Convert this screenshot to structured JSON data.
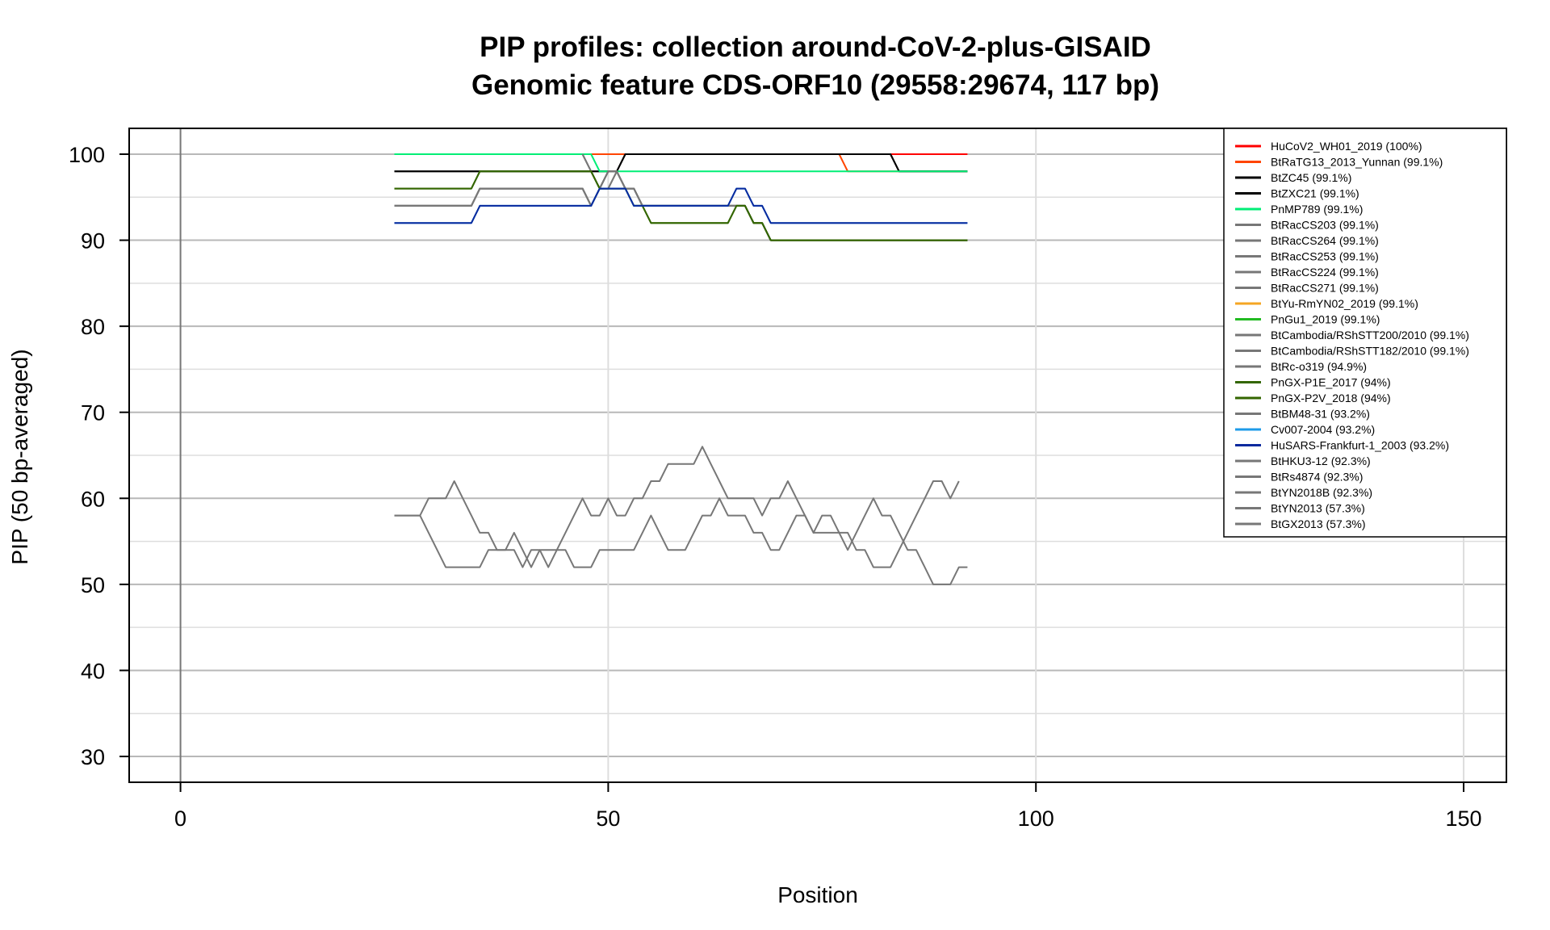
{
  "chart_data": {
    "type": "line",
    "title": "PIP profiles: collection around-CoV-2-plus-GISAID",
    "subtitle": "Genomic feature CDS-ORF10 (29558:29674, 117 bp)",
    "xlabel": "Position",
    "ylabel": "PIP (50 bp-averaged)",
    "xlim": [
      -6,
      155
    ],
    "ylim": [
      27,
      103
    ],
    "xticks": [
      0,
      50,
      100,
      150
    ],
    "yticks": [
      30,
      40,
      50,
      60,
      70,
      80,
      90,
      100
    ],
    "grid": true,
    "legend_position": "top-right",
    "series": [
      {
        "name": "HuCoV2_WH01_2019 (100%)",
        "color": "#ff0000",
        "points": [
          [
            25,
            100
          ],
          [
            92,
            100
          ]
        ]
      },
      {
        "name": "BtRaTG13_2013_Yunnan (99.1%)",
        "color": "#ff4500",
        "points": [
          [
            25,
            100
          ],
          [
            77,
            100
          ],
          [
            78,
            98
          ],
          [
            92,
            98
          ]
        ]
      },
      {
        "name": "BtZC45 (99.1%)",
        "color": "#000000",
        "points": [
          [
            25,
            98
          ],
          [
            51,
            98
          ],
          [
            52,
            100
          ],
          [
            83,
            100
          ],
          [
            84,
            98
          ],
          [
            92,
            98
          ]
        ]
      },
      {
        "name": "BtZXC21 (99.1%)",
        "color": "#000000",
        "points": [
          [
            25,
            98
          ],
          [
            51,
            98
          ],
          [
            52,
            100
          ],
          [
            83,
            100
          ],
          [
            84,
            98
          ],
          [
            92,
            98
          ]
        ]
      },
      {
        "name": "PnMP789 (99.1%)",
        "color": "#00ee76",
        "points": [
          [
            25,
            100
          ],
          [
            48,
            100
          ],
          [
            49,
            98
          ],
          [
            92,
            98
          ]
        ]
      },
      {
        "name": "BtRacCS203 (99.1%)",
        "color": "#777777",
        "points": [
          [
            25,
            94
          ],
          [
            34,
            94
          ],
          [
            35,
            96
          ],
          [
            47,
            96
          ],
          [
            48,
            94
          ],
          [
            49,
            96
          ],
          [
            50,
            98
          ],
          [
            51,
            98
          ],
          [
            52,
            96
          ],
          [
            53,
            96
          ],
          [
            54,
            94
          ],
          [
            64,
            94
          ],
          [
            65,
            94
          ],
          [
            66,
            94
          ],
          [
            67,
            92
          ],
          [
            68,
            92
          ],
          [
            69,
            90
          ],
          [
            92,
            90
          ]
        ]
      },
      {
        "name": "BtRacCS264 (99.1%)",
        "color": "#777777",
        "points": [
          [
            25,
            94
          ],
          [
            34,
            94
          ],
          [
            35,
            96
          ],
          [
            47,
            96
          ],
          [
            48,
            94
          ],
          [
            49,
            96
          ],
          [
            50,
            98
          ],
          [
            51,
            98
          ],
          [
            52,
            96
          ],
          [
            53,
            96
          ],
          [
            54,
            94
          ],
          [
            64,
            94
          ],
          [
            65,
            94
          ],
          [
            66,
            94
          ],
          [
            67,
            92
          ],
          [
            68,
            92
          ],
          [
            69,
            90
          ],
          [
            92,
            90
          ]
        ]
      },
      {
        "name": "BtRacCS253 (99.1%)",
        "color": "#777777",
        "points": [
          [
            25,
            94
          ],
          [
            34,
            94
          ],
          [
            35,
            96
          ],
          [
            47,
            96
          ],
          [
            48,
            94
          ],
          [
            49,
            96
          ],
          [
            50,
            98
          ],
          [
            51,
            98
          ],
          [
            52,
            96
          ],
          [
            53,
            96
          ],
          [
            54,
            94
          ],
          [
            64,
            94
          ],
          [
            65,
            94
          ],
          [
            66,
            94
          ],
          [
            67,
            92
          ],
          [
            68,
            92
          ],
          [
            69,
            90
          ],
          [
            92,
            90
          ]
        ]
      },
      {
        "name": "BtRacCS224 (99.1%)",
        "color": "#777777",
        "points": [
          [
            25,
            94
          ],
          [
            34,
            94
          ],
          [
            35,
            96
          ],
          [
            47,
            96
          ],
          [
            48,
            94
          ],
          [
            49,
            96
          ],
          [
            50,
            98
          ],
          [
            51,
            98
          ],
          [
            52,
            96
          ],
          [
            53,
            96
          ],
          [
            54,
            94
          ],
          [
            64,
            94
          ],
          [
            65,
            94
          ],
          [
            66,
            94
          ],
          [
            67,
            92
          ],
          [
            68,
            92
          ],
          [
            69,
            90
          ],
          [
            92,
            90
          ]
        ]
      },
      {
        "name": "BtRacCS271 (99.1%)",
        "color": "#777777",
        "points": [
          [
            25,
            94
          ],
          [
            34,
            94
          ],
          [
            35,
            96
          ],
          [
            47,
            96
          ],
          [
            48,
            94
          ],
          [
            49,
            96
          ],
          [
            50,
            98
          ],
          [
            51,
            98
          ],
          [
            52,
            96
          ],
          [
            53,
            96
          ],
          [
            54,
            94
          ],
          [
            64,
            94
          ],
          [
            65,
            94
          ],
          [
            66,
            94
          ],
          [
            67,
            92
          ],
          [
            68,
            92
          ],
          [
            69,
            90
          ],
          [
            92,
            90
          ]
        ]
      },
      {
        "name": "BtYu-RmYN02_2019 (99.1%)",
        "color": "#f5a623",
        "points": []
      },
      {
        "name": "PnGu1_2019 (99.1%)",
        "color": "#22bb22",
        "points": []
      },
      {
        "name": "BtCambodia/RShSTT200/2010 (99.1%)",
        "color": "#777777",
        "points": [
          [
            47,
            100
          ],
          [
            48,
            98
          ],
          [
            49,
            96
          ],
          [
            50,
            96
          ],
          [
            51,
            98
          ]
        ]
      },
      {
        "name": "BtCambodia/RShSTT182/2010 (99.1%)",
        "color": "#777777",
        "points": [
          [
            47,
            100
          ],
          [
            48,
            98
          ],
          [
            49,
            96
          ],
          [
            50,
            96
          ],
          [
            51,
            98
          ]
        ]
      },
      {
        "name": "BtRc-o319 (94.9%)",
        "color": "#777777",
        "points": []
      },
      {
        "name": "PnGX-P1E_2017 (94%)",
        "color": "#336600",
        "points": [
          [
            25,
            96
          ],
          [
            34,
            96
          ],
          [
            35,
            98
          ],
          [
            48,
            98
          ],
          [
            49,
            96
          ],
          [
            52,
            96
          ],
          [
            53,
            94
          ],
          [
            54,
            94
          ],
          [
            55,
            92
          ],
          [
            64,
            92
          ],
          [
            65,
            94
          ],
          [
            66,
            94
          ],
          [
            67,
            92
          ],
          [
            68,
            92
          ],
          [
            69,
            90
          ],
          [
            92,
            90
          ]
        ]
      },
      {
        "name": "PnGX-P2V_2018 (94%)",
        "color": "#336600",
        "points": [
          [
            25,
            96
          ],
          [
            34,
            96
          ],
          [
            35,
            98
          ],
          [
            48,
            98
          ],
          [
            49,
            96
          ],
          [
            52,
            96
          ],
          [
            53,
            94
          ],
          [
            54,
            94
          ],
          [
            55,
            92
          ],
          [
            64,
            92
          ],
          [
            65,
            94
          ],
          [
            66,
            94
          ],
          [
            67,
            92
          ],
          [
            68,
            92
          ],
          [
            69,
            90
          ],
          [
            92,
            90
          ]
        ]
      },
      {
        "name": "BtBM48-31 (93.2%)",
        "color": "#777777",
        "points": []
      },
      {
        "name": "Cv007-2004 (93.2%)",
        "color": "#1e9be8",
        "points": [
          [
            25,
            92
          ],
          [
            34,
            92
          ],
          [
            35,
            94
          ],
          [
            48,
            94
          ],
          [
            49,
            96
          ],
          [
            50,
            96
          ],
          [
            51,
            96
          ],
          [
            52,
            96
          ],
          [
            53,
            94
          ],
          [
            64,
            94
          ],
          [
            65,
            96
          ],
          [
            66,
            96
          ],
          [
            67,
            94
          ],
          [
            68,
            94
          ],
          [
            69,
            92
          ],
          [
            92,
            92
          ]
        ]
      },
      {
        "name": "HuSARS-Frankfurt-1_2003 (93.2%)",
        "color": "#0a2a9e",
        "points": [
          [
            25,
            92
          ],
          [
            34,
            92
          ],
          [
            35,
            94
          ],
          [
            48,
            94
          ],
          [
            49,
            96
          ],
          [
            50,
            96
          ],
          [
            51,
            96
          ],
          [
            52,
            96
          ],
          [
            53,
            94
          ],
          [
            64,
            94
          ],
          [
            65,
            96
          ],
          [
            66,
            96
          ],
          [
            67,
            94
          ],
          [
            68,
            94
          ],
          [
            69,
            92
          ],
          [
            92,
            92
          ]
        ]
      },
      {
        "name": "BtHKU3-12 (92.3%)",
        "color": "#777777",
        "points": []
      },
      {
        "name": "BtRs4874 (92.3%)",
        "color": "#777777",
        "points": []
      },
      {
        "name": "BtYN2018B (92.3%)",
        "color": "#777777",
        "points": []
      },
      {
        "name": "BtYN2013 (57.3%)",
        "color": "#777777",
        "points": [
          [
            25,
            58
          ],
          [
            28,
            58
          ],
          [
            29,
            60
          ],
          [
            31,
            60
          ],
          [
            32,
            62
          ],
          [
            33,
            60
          ],
          [
            34,
            58
          ],
          [
            35,
            56
          ],
          [
            36,
            56
          ],
          [
            37,
            54
          ],
          [
            39,
            54
          ],
          [
            40,
            52
          ],
          [
            41,
            54
          ],
          [
            42,
            54
          ],
          [
            43,
            52
          ],
          [
            44,
            54
          ],
          [
            45,
            56
          ],
          [
            46,
            58
          ],
          [
            47,
            60
          ],
          [
            48,
            58
          ],
          [
            49,
            58
          ],
          [
            50,
            60
          ],
          [
            51,
            58
          ],
          [
            52,
            58
          ],
          [
            53,
            60
          ],
          [
            54,
            60
          ],
          [
            55,
            62
          ],
          [
            56,
            62
          ],
          [
            57,
            64
          ],
          [
            60,
            64
          ],
          [
            61,
            66
          ],
          [
            62,
            64
          ],
          [
            63,
            62
          ],
          [
            64,
            60
          ],
          [
            66,
            60
          ],
          [
            67,
            60
          ],
          [
            68,
            58
          ],
          [
            69,
            60
          ],
          [
            70,
            60
          ],
          [
            71,
            62
          ],
          [
            72,
            60
          ],
          [
            73,
            58
          ],
          [
            74,
            56
          ],
          [
            75,
            58
          ],
          [
            76,
            58
          ],
          [
            77,
            56
          ],
          [
            78,
            54
          ],
          [
            79,
            56
          ],
          [
            80,
            58
          ],
          [
            81,
            60
          ],
          [
            82,
            58
          ],
          [
            83,
            58
          ],
          [
            84,
            56
          ],
          [
            85,
            54
          ],
          [
            86,
            54
          ],
          [
            87,
            52
          ],
          [
            88,
            50
          ],
          [
            90,
            50
          ],
          [
            91,
            52
          ],
          [
            92,
            52
          ]
        ]
      },
      {
        "name": "BtGX2013 (57.3%)",
        "color": "#777777",
        "points": [
          [
            25,
            58
          ],
          [
            28,
            58
          ],
          [
            29,
            56
          ],
          [
            30,
            54
          ],
          [
            31,
            52
          ],
          [
            35,
            52
          ],
          [
            36,
            54
          ],
          [
            37,
            54
          ],
          [
            38,
            54
          ],
          [
            39,
            56
          ],
          [
            40,
            54
          ],
          [
            41,
            52
          ],
          [
            42,
            54
          ],
          [
            45,
            54
          ],
          [
            46,
            52
          ],
          [
            48,
            52
          ],
          [
            49,
            54
          ],
          [
            53,
            54
          ],
          [
            54,
            56
          ],
          [
            55,
            58
          ],
          [
            56,
            56
          ],
          [
            57,
            54
          ],
          [
            59,
            54
          ],
          [
            60,
            56
          ],
          [
            61,
            58
          ],
          [
            62,
            58
          ],
          [
            63,
            60
          ],
          [
            64,
            58
          ],
          [
            66,
            58
          ],
          [
            67,
            56
          ],
          [
            68,
            56
          ],
          [
            69,
            54
          ],
          [
            70,
            54
          ],
          [
            71,
            56
          ],
          [
            72,
            58
          ],
          [
            73,
            58
          ],
          [
            74,
            56
          ],
          [
            78,
            56
          ],
          [
            79,
            54
          ],
          [
            80,
            54
          ],
          [
            81,
            52
          ],
          [
            83,
            52
          ],
          [
            84,
            54
          ],
          [
            85,
            56
          ],
          [
            86,
            58
          ],
          [
            87,
            60
          ],
          [
            88,
            62
          ],
          [
            89,
            62
          ],
          [
            90,
            60
          ],
          [
            91,
            62
          ]
        ]
      }
    ]
  }
}
